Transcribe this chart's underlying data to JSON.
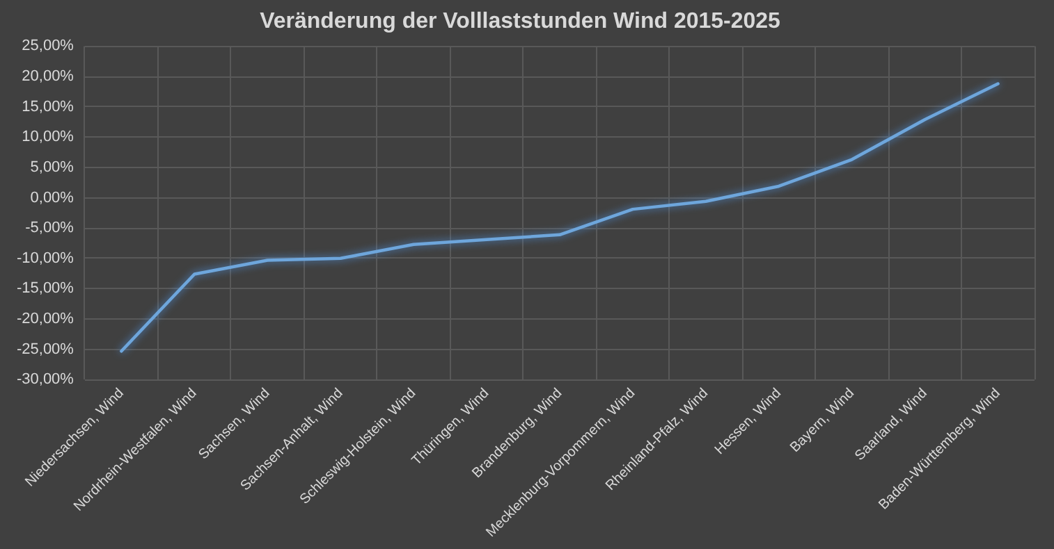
{
  "chart_data": {
    "type": "line",
    "title": "Veränderung der Volllaststunden Wind 2015-2025",
    "categories": [
      "Niedersachsen, Wind",
      "Nordrhein-Westfalen, Wind",
      "Sachsen, Wind",
      "Sachsen-Anhalt, Wind",
      "Schleswig-Holstein, Wind",
      "Thüringen, Wind",
      "Brandenburg, Wind",
      "Mecklenburg-Vorpommern, Wind",
      "Rheinland-Pfalz, Wind",
      "Hessen, Wind",
      "Bayern, Wind",
      "Saarland, Wind",
      "Baden-Württemberg, Wind"
    ],
    "series": [
      {
        "color": "#6ea6dc",
        "values": [
          -25.3,
          -12.6,
          -10.3,
          -10.0,
          -7.7,
          -6.9,
          -6.1,
          -1.9,
          -0.6,
          1.9,
          6.3,
          12.9,
          18.8
        ]
      }
    ],
    "ylim": [
      -30,
      25
    ],
    "yticks": [
      {
        "value": -30,
        "label": "-30,00%"
      },
      {
        "value": -25,
        "label": "-25,00%"
      },
      {
        "value": -20,
        "label": "-20,00%"
      },
      {
        "value": -15,
        "label": "-15,00%"
      },
      {
        "value": -10,
        "label": "-10,00%"
      },
      {
        "value": -5,
        "label": "-5,00%"
      },
      {
        "value": 0,
        "label": "0,00%"
      },
      {
        "value": 5,
        "label": "5,00%"
      },
      {
        "value": 10,
        "label": "10,00%"
      },
      {
        "value": 15,
        "label": "15,00%"
      },
      {
        "value": 20,
        "label": "20,00%"
      },
      {
        "value": 25,
        "label": "25,00%"
      }
    ],
    "grid": true,
    "legend": false,
    "marker": "none",
    "line_style": "solid"
  }
}
